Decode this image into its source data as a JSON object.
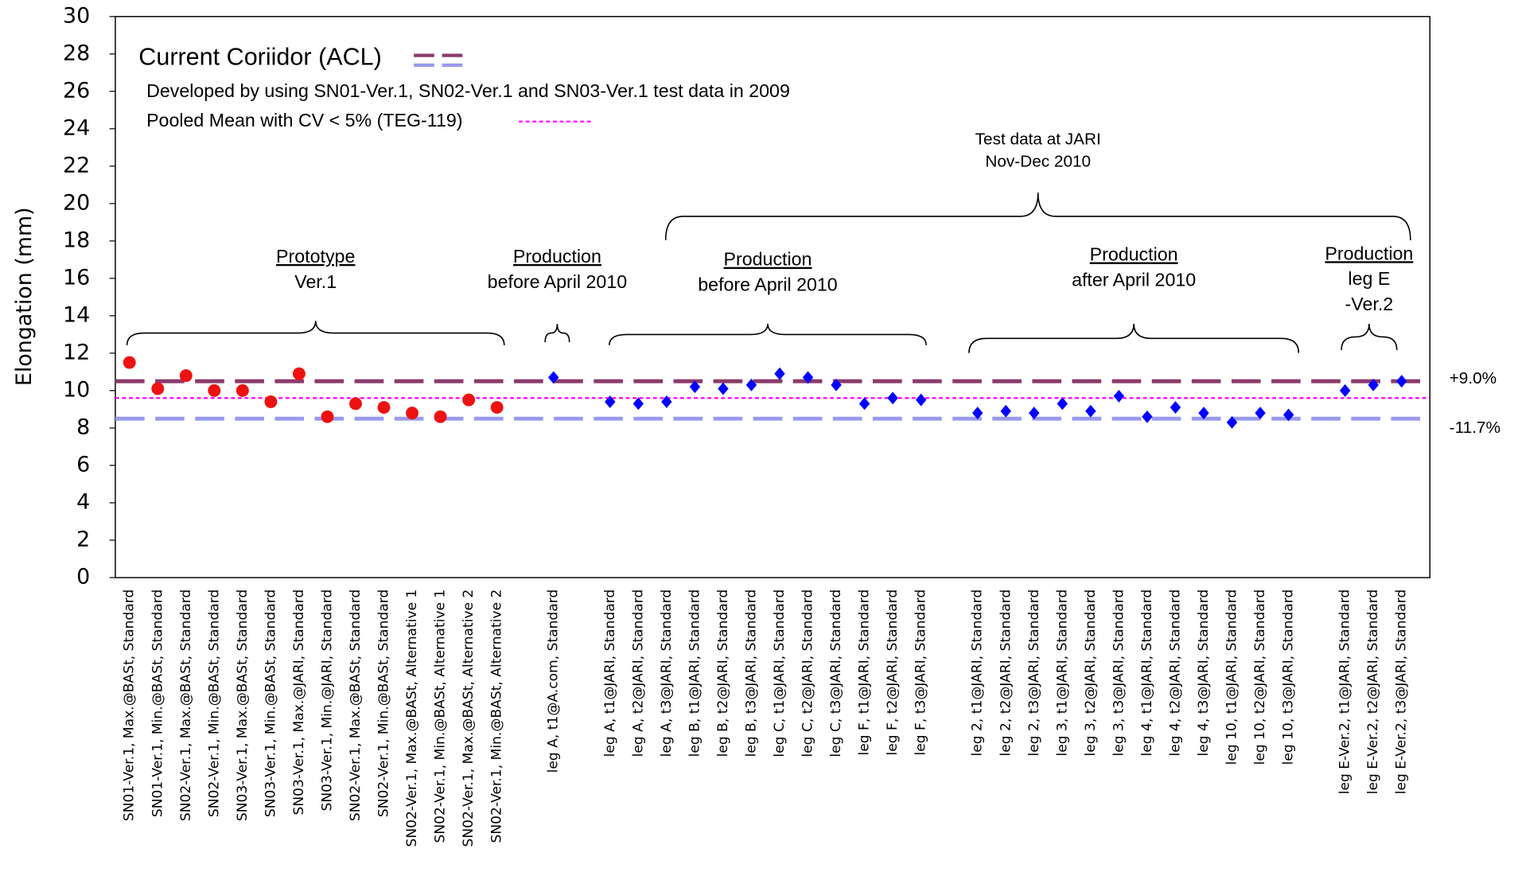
{
  "chart_data": {
    "type": "scatter",
    "y_label": "Elongation (mm)",
    "ylim": [
      0,
      30
    ],
    "yticks": [
      0,
      2,
      4,
      6,
      8,
      10,
      12,
      14,
      16,
      18,
      20,
      22,
      24,
      26,
      28,
      30
    ],
    "grid": false,
    "categories": [
      "SN01-Ver.1, Max.@BASt, Standard",
      "SN01-Ver.1, Min.@BASt, Standard",
      "SN02-Ver.1, Max.@BASt, Standard",
      "SN02-Ver.1, Min.@BASt, Standard",
      "SN03-Ver.1, Max.@BASt, Standard",
      "SN03-Ver.1, Min.@BASt, Standard",
      "SN03-Ver.1, Max.@JARI, Standard",
      "SN03-Ver.1, Min.@JARI, Standard",
      "SN02-Ver.1, Max.@BASt, Standard",
      "SN02-Ver.1, Min.@BASt, Standard",
      "SN02-Ver.1, Max.@BASt, Alternative 1",
      "SN02-Ver.1, Min.@BASt, Alternative 1",
      "SN02-Ver.1, Max.@BASt, Alternative 2",
      "SN02-Ver.1, Min.@BASt, Alternative 2",
      null,
      "leg A, t1@A.com, Standard",
      null,
      "leg A, t1@JARI, Standard",
      "leg A, t2@JARI, Standard",
      "leg A, t3@JARI, Standard",
      "leg B, t1@JARI, Standard",
      "leg B, t2@JARI, Standard",
      "leg B, t3@JARI, Standard",
      "leg C, t1@JARI, Standard",
      "leg C, t2@JARI, Standard",
      "leg C, t3@JARI, Standard",
      "leg F, t1@JARI, Standard",
      "leg F, t2@JARI, Standard",
      "leg F, t3@JARI, Standard",
      null,
      "leg 2, t1@JARI, Standard",
      "leg 2, t2@JARI, Standard",
      "leg 2, t3@JARI, Standard",
      "leg 3, t1@JARI, Standard",
      "leg 3, t2@JARI, Standard",
      "leg 3, t3@JARI, Standard",
      "leg 4, t1@JARI, Standard",
      "leg 4, t2@JARI, Standard",
      "leg 4, t3@JARI, Standard",
      "leg 10, t1@JARI, Standard",
      "leg 10, t2@JARI, Standard",
      "leg 10, t3@JARI, Standard",
      null,
      "leg E-Ver.2, t1@JARI, Standard",
      "leg E-Ver.2, t2@JARI, Standard",
      "leg E-Ver.2, t3@JARI, Standard"
    ],
    "series": [
      {
        "color": "#ee1111",
        "marker": "circle",
        "values": [
          11.5,
          10.1,
          10.8,
          10.0,
          10.0,
          9.4,
          10.9,
          8.6,
          9.3,
          9.1,
          8.8,
          8.6,
          9.5,
          9.1,
          null,
          null,
          null,
          null,
          null,
          null,
          null,
          null,
          null,
          null,
          null,
          null,
          null,
          null,
          null,
          null,
          null,
          null,
          null,
          null,
          null,
          null,
          null,
          null,
          null,
          null,
          null,
          null,
          null,
          null,
          null,
          null
        ]
      },
      {
        "color": "#0000ff",
        "marker": "diamond",
        "values": [
          null,
          null,
          null,
          null,
          null,
          null,
          null,
          null,
          null,
          null,
          null,
          null,
          null,
          null,
          null,
          10.7,
          null,
          9.4,
          9.3,
          9.4,
          10.2,
          10.1,
          10.3,
          10.9,
          10.7,
          10.3,
          9.3,
          9.6,
          9.5,
          null,
          8.8,
          8.9,
          8.8,
          9.3,
          8.9,
          9.7,
          8.6,
          9.1,
          8.8,
          8.3,
          8.8,
          8.7,
          null,
          10.0,
          10.3,
          10.5
        ]
      }
    ],
    "corridor": {
      "name": "Current Coriidor (ACL)",
      "values": [
        10.5,
        8.5
      ],
      "colors": [
        "#8b3a6b",
        "#9999ee"
      ],
      "labels": [
        "+9.0%",
        "-11.7%"
      ]
    },
    "corridor_note": "Developed by using SN01-Ver.1, SN02-Ver.1 and SN03-Ver.1  test data in 2009",
    "pooled_mean": {
      "name": "Pooled Mean with CV < 5% (TEG-119)",
      "value": 9.6,
      "color": "#ff00ff"
    },
    "annotations": [
      {
        "lines": [
          "Prototype",
          "Ver.1"
        ],
        "underline_first": true
      },
      {
        "lines": [
          "Production",
          "before April 2010"
        ],
        "underline_first": true
      },
      {
        "lines": [
          "Production",
          "before April 2010"
        ],
        "underline_first": true
      },
      {
        "lines": [
          "Production",
          "after April 2010"
        ],
        "underline_first": true
      },
      {
        "lines": [
          "Production",
          "leg E",
          "-Ver.2"
        ],
        "underline_first": true
      },
      {
        "lines": [
          "Test data at JARI",
          "Nov-Dec 2010"
        ],
        "underline_first": false
      }
    ]
  }
}
